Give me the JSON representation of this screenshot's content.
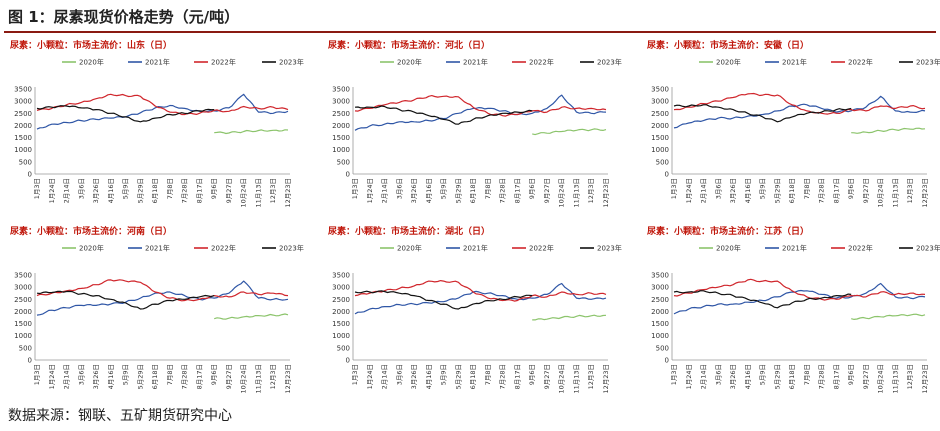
{
  "figure": {
    "title": "图 1：尿素现货价格走势（元/吨）",
    "source": "数据来源：钢联、五矿期货研究中心"
  },
  "colors": {
    "2020年": "#8cc46c",
    "2021年": "#2f56a6",
    "2022年": "#d0262c",
    "2023年": "#111111",
    "title_red": "#c0180c",
    "rule": "#8a1a12"
  },
  "chart_data": [
    {
      "type": "line",
      "title": "尿素：小颗粒：市场主流价：山东（日）",
      "x": [
        "1月3日",
        "1月24日",
        "2月14日",
        "3月6日",
        "3月26日",
        "4月16日",
        "5月9日",
        "5月29日",
        "6月18日",
        "7月8日",
        "7月28日",
        "8月17日",
        "9月6日",
        "9月27日",
        "10月24日",
        "11月13日",
        "12月3日",
        "12月23日"
      ],
      "ylim": [
        0,
        3500
      ],
      "yticks": [
        0,
        500,
        1000,
        1500,
        2000,
        2500,
        3000,
        3500
      ],
      "legend": "top",
      "grid": false,
      "series": [
        {
          "name": "2020年",
          "values": [
            null,
            null,
            null,
            null,
            null,
            null,
            null,
            null,
            null,
            null,
            null,
            null,
            1700,
            1690,
            1750,
            1790,
            1800,
            1810
          ]
        },
        {
          "name": "2021年",
          "values": [
            1850,
            2050,
            2120,
            2200,
            2250,
            2300,
            2350,
            2520,
            2720,
            2820,
            2700,
            2580,
            2600,
            2720,
            3280,
            2550,
            2500,
            2580
          ]
        },
        {
          "name": "2022年",
          "values": [
            2620,
            2700,
            2850,
            2950,
            3100,
            3280,
            3230,
            3200,
            2800,
            2550,
            2450,
            2500,
            2620,
            2580,
            2780,
            2700,
            2750,
            2650
          ]
        },
        {
          "name": "2023年",
          "values": [
            2700,
            2750,
            2800,
            2720,
            2650,
            2500,
            2350,
            2150,
            2300,
            2450,
            2500,
            2600,
            2650,
            null,
            null,
            null,
            null,
            null
          ]
        }
      ]
    },
    {
      "type": "line",
      "title": "尿素：小颗粒：市场主流价：河北（日）",
      "x": [
        "1月3日",
        "1月24日",
        "2月14日",
        "3月6日",
        "3月26日",
        "4月16日",
        "5月9日",
        "5月29日",
        "6月18日",
        "7月8日",
        "7月28日",
        "8月17日",
        "9月6日",
        "9月27日",
        "10月24日",
        "11月13日",
        "12月3日",
        "12月23日"
      ],
      "ylim": [
        0,
        3500
      ],
      "yticks": [
        0,
        500,
        1000,
        1500,
        2000,
        2500,
        3000,
        3500
      ],
      "legend": "top",
      "grid": false,
      "series": [
        {
          "name": "2020年",
          "values": [
            null,
            null,
            null,
            null,
            null,
            null,
            null,
            null,
            null,
            null,
            null,
            null,
            1650,
            1680,
            1750,
            1800,
            1820,
            1830
          ]
        },
        {
          "name": "2021年",
          "values": [
            1800,
            1980,
            2050,
            2150,
            2150,
            2200,
            2280,
            2500,
            2700,
            2700,
            2600,
            2450,
            2500,
            2700,
            3250,
            2550,
            2500,
            2550
          ]
        },
        {
          "name": "2022年",
          "values": [
            2600,
            2700,
            2850,
            2950,
            3050,
            3200,
            3200,
            3180,
            2750,
            2500,
            2400,
            2450,
            2600,
            2550,
            2750,
            2700,
            2700,
            2650
          ]
        },
        {
          "name": "2023年",
          "values": [
            2750,
            2750,
            2780,
            2650,
            2550,
            2400,
            2250,
            2050,
            2250,
            2400,
            2500,
            2550,
            2600,
            null,
            null,
            null,
            null,
            null
          ]
        }
      ]
    },
    {
      "type": "line",
      "title": "尿素：小颗粒：市场主流价：安徽（日）",
      "x": [
        "1月3日",
        "1月24日",
        "2月14日",
        "3月6日",
        "3月26日",
        "4月16日",
        "5月9日",
        "5月29日",
        "6月18日",
        "7月8日",
        "7月28日",
        "8月17日",
        "9月6日",
        "9月27日",
        "10月24日",
        "11月13日",
        "12月3日",
        "12月23日"
      ],
      "ylim": [
        0,
        3500
      ],
      "yticks": [
        0,
        500,
        1000,
        1500,
        2000,
        2500,
        3000,
        3500
      ],
      "legend": "top",
      "grid": false,
      "series": [
        {
          "name": "2020年",
          "values": [
            null,
            null,
            null,
            null,
            null,
            null,
            null,
            null,
            null,
            null,
            null,
            null,
            1700,
            1720,
            1780,
            1820,
            1850,
            1860
          ]
        },
        {
          "name": "2021年",
          "values": [
            1900,
            2100,
            2200,
            2300,
            2300,
            2380,
            2450,
            2600,
            2800,
            2850,
            2700,
            2550,
            2600,
            2750,
            3200,
            2600,
            2550,
            2600
          ]
        },
        {
          "name": "2022年",
          "values": [
            2650,
            2750,
            2900,
            3000,
            3150,
            3300,
            3250,
            3250,
            2850,
            2600,
            2500,
            2500,
            2650,
            2600,
            2800,
            2700,
            2800,
            2700
          ]
        },
        {
          "name": "2023年",
          "values": [
            2800,
            2800,
            2850,
            2750,
            2650,
            2500,
            2350,
            2150,
            2350,
            2500,
            2550,
            2650,
            2700,
            null,
            null,
            null,
            null,
            null
          ]
        }
      ]
    },
    {
      "type": "line",
      "title": "尿素：小颗粒：市场主流价：河南（日）",
      "x": [
        "1月3日",
        "1月24日",
        "2月14日",
        "3月6日",
        "3月26日",
        "4月16日",
        "5月9日",
        "5月29日",
        "6月18日",
        "7月8日",
        "7月28日",
        "8月17日",
        "9月6日",
        "9月27日",
        "10月24日",
        "11月13日",
        "12月3日",
        "12月23日"
      ],
      "ylim": [
        0,
        3500
      ],
      "yticks": [
        0,
        500,
        1000,
        1500,
        2000,
        2500,
        3000,
        3500
      ],
      "legend": "top",
      "grid": false,
      "series": [
        {
          "name": "2020年",
          "values": [
            null,
            null,
            null,
            null,
            null,
            null,
            null,
            null,
            null,
            null,
            null,
            null,
            1700,
            1720,
            1780,
            1830,
            1850,
            1860
          ]
        },
        {
          "name": "2021年",
          "values": [
            1850,
            2050,
            2150,
            2250,
            2250,
            2300,
            2380,
            2550,
            2750,
            2800,
            2650,
            2500,
            2550,
            2750,
            3250,
            2550,
            2500,
            2500
          ]
        },
        {
          "name": "2022年",
          "values": [
            2650,
            2750,
            2850,
            2950,
            3100,
            3300,
            3250,
            3200,
            2800,
            2550,
            2450,
            2500,
            2650,
            2600,
            2800,
            2700,
            2750,
            2650
          ]
        },
        {
          "name": "2023年",
          "values": [
            2750,
            2780,
            2820,
            2720,
            2650,
            2500,
            2350,
            2100,
            2300,
            2450,
            2500,
            2600,
            2650,
            null,
            null,
            null,
            null,
            null
          ]
        }
      ]
    },
    {
      "type": "line",
      "title": "尿素：小颗粒：市场主流价：湖北（日）",
      "x": [
        "1月3日",
        "1月24日",
        "2月14日",
        "3月6日",
        "3月26日",
        "4月16日",
        "5月9日",
        "5月29日",
        "6月18日",
        "7月8日",
        "7月28日",
        "8月17日",
        "9月6日",
        "9月27日",
        "10月24日",
        "11月13日",
        "12月3日",
        "12月23日"
      ],
      "ylim": [
        0,
        3500
      ],
      "yticks": [
        0,
        500,
        1000,
        1500,
        2000,
        2500,
        3000,
        3500
      ],
      "legend": "top",
      "grid": false,
      "series": [
        {
          "name": "2020年",
          "values": [
            null,
            null,
            null,
            null,
            null,
            null,
            null,
            null,
            null,
            null,
            null,
            null,
            1650,
            1680,
            1750,
            1800,
            1820,
            1840
          ]
        },
        {
          "name": "2021年",
          "values": [
            1900,
            2100,
            2200,
            2280,
            2300,
            2350,
            2400,
            2550,
            2800,
            2750,
            2650,
            2500,
            2550,
            2700,
            3150,
            2550,
            2500,
            2550
          ]
        },
        {
          "name": "2022年",
          "values": [
            2650,
            2750,
            2850,
            2950,
            3050,
            3250,
            3250,
            3200,
            2800,
            2550,
            2450,
            2450,
            2650,
            2600,
            2800,
            2700,
            2750,
            2700
          ]
        },
        {
          "name": "2023年",
          "values": [
            2800,
            2800,
            2820,
            2750,
            2650,
            2450,
            2300,
            2100,
            2300,
            2450,
            2500,
            2600,
            2650,
            null,
            null,
            null,
            null,
            null
          ]
        }
      ]
    },
    {
      "type": "line",
      "title": "尿素：小颗粒：市场主流价：江苏（日）",
      "x": [
        "1月3日",
        "1月24日",
        "2月14日",
        "3月6日",
        "3月26日",
        "4月16日",
        "5月9日",
        "5月29日",
        "6月18日",
        "7月8日",
        "7月28日",
        "8月17日",
        "9月6日",
        "9月27日",
        "10月24日",
        "11月13日",
        "12月3日",
        "12月23日"
      ],
      "ylim": [
        0,
        3500
      ],
      "yticks": [
        0,
        500,
        1000,
        1500,
        2000,
        2500,
        3000,
        3500
      ],
      "legend": "top",
      "grid": false,
      "series": [
        {
          "name": "2020年",
          "values": [
            null,
            null,
            null,
            null,
            null,
            null,
            null,
            null,
            null,
            null,
            null,
            null,
            1700,
            1720,
            1780,
            1820,
            1850,
            1860
          ]
        },
        {
          "name": "2021年",
          "values": [
            1900,
            2100,
            2200,
            2300,
            2300,
            2380,
            2450,
            2600,
            2800,
            2850,
            2700,
            2550,
            2600,
            2750,
            3150,
            2600,
            2550,
            2600
          ]
        },
        {
          "name": "2022年",
          "values": [
            2650,
            2750,
            2900,
            3000,
            3100,
            3300,
            3250,
            3250,
            2850,
            2600,
            2500,
            2500,
            2650,
            2600,
            2800,
            2700,
            2750,
            2700
          ]
        },
        {
          "name": "2023年",
          "values": [
            2800,
            2800,
            2850,
            2750,
            2650,
            2500,
            2350,
            2150,
            2350,
            2500,
            2550,
            2650,
            2700,
            null,
            null,
            null,
            null,
            null
          ]
        }
      ]
    }
  ]
}
